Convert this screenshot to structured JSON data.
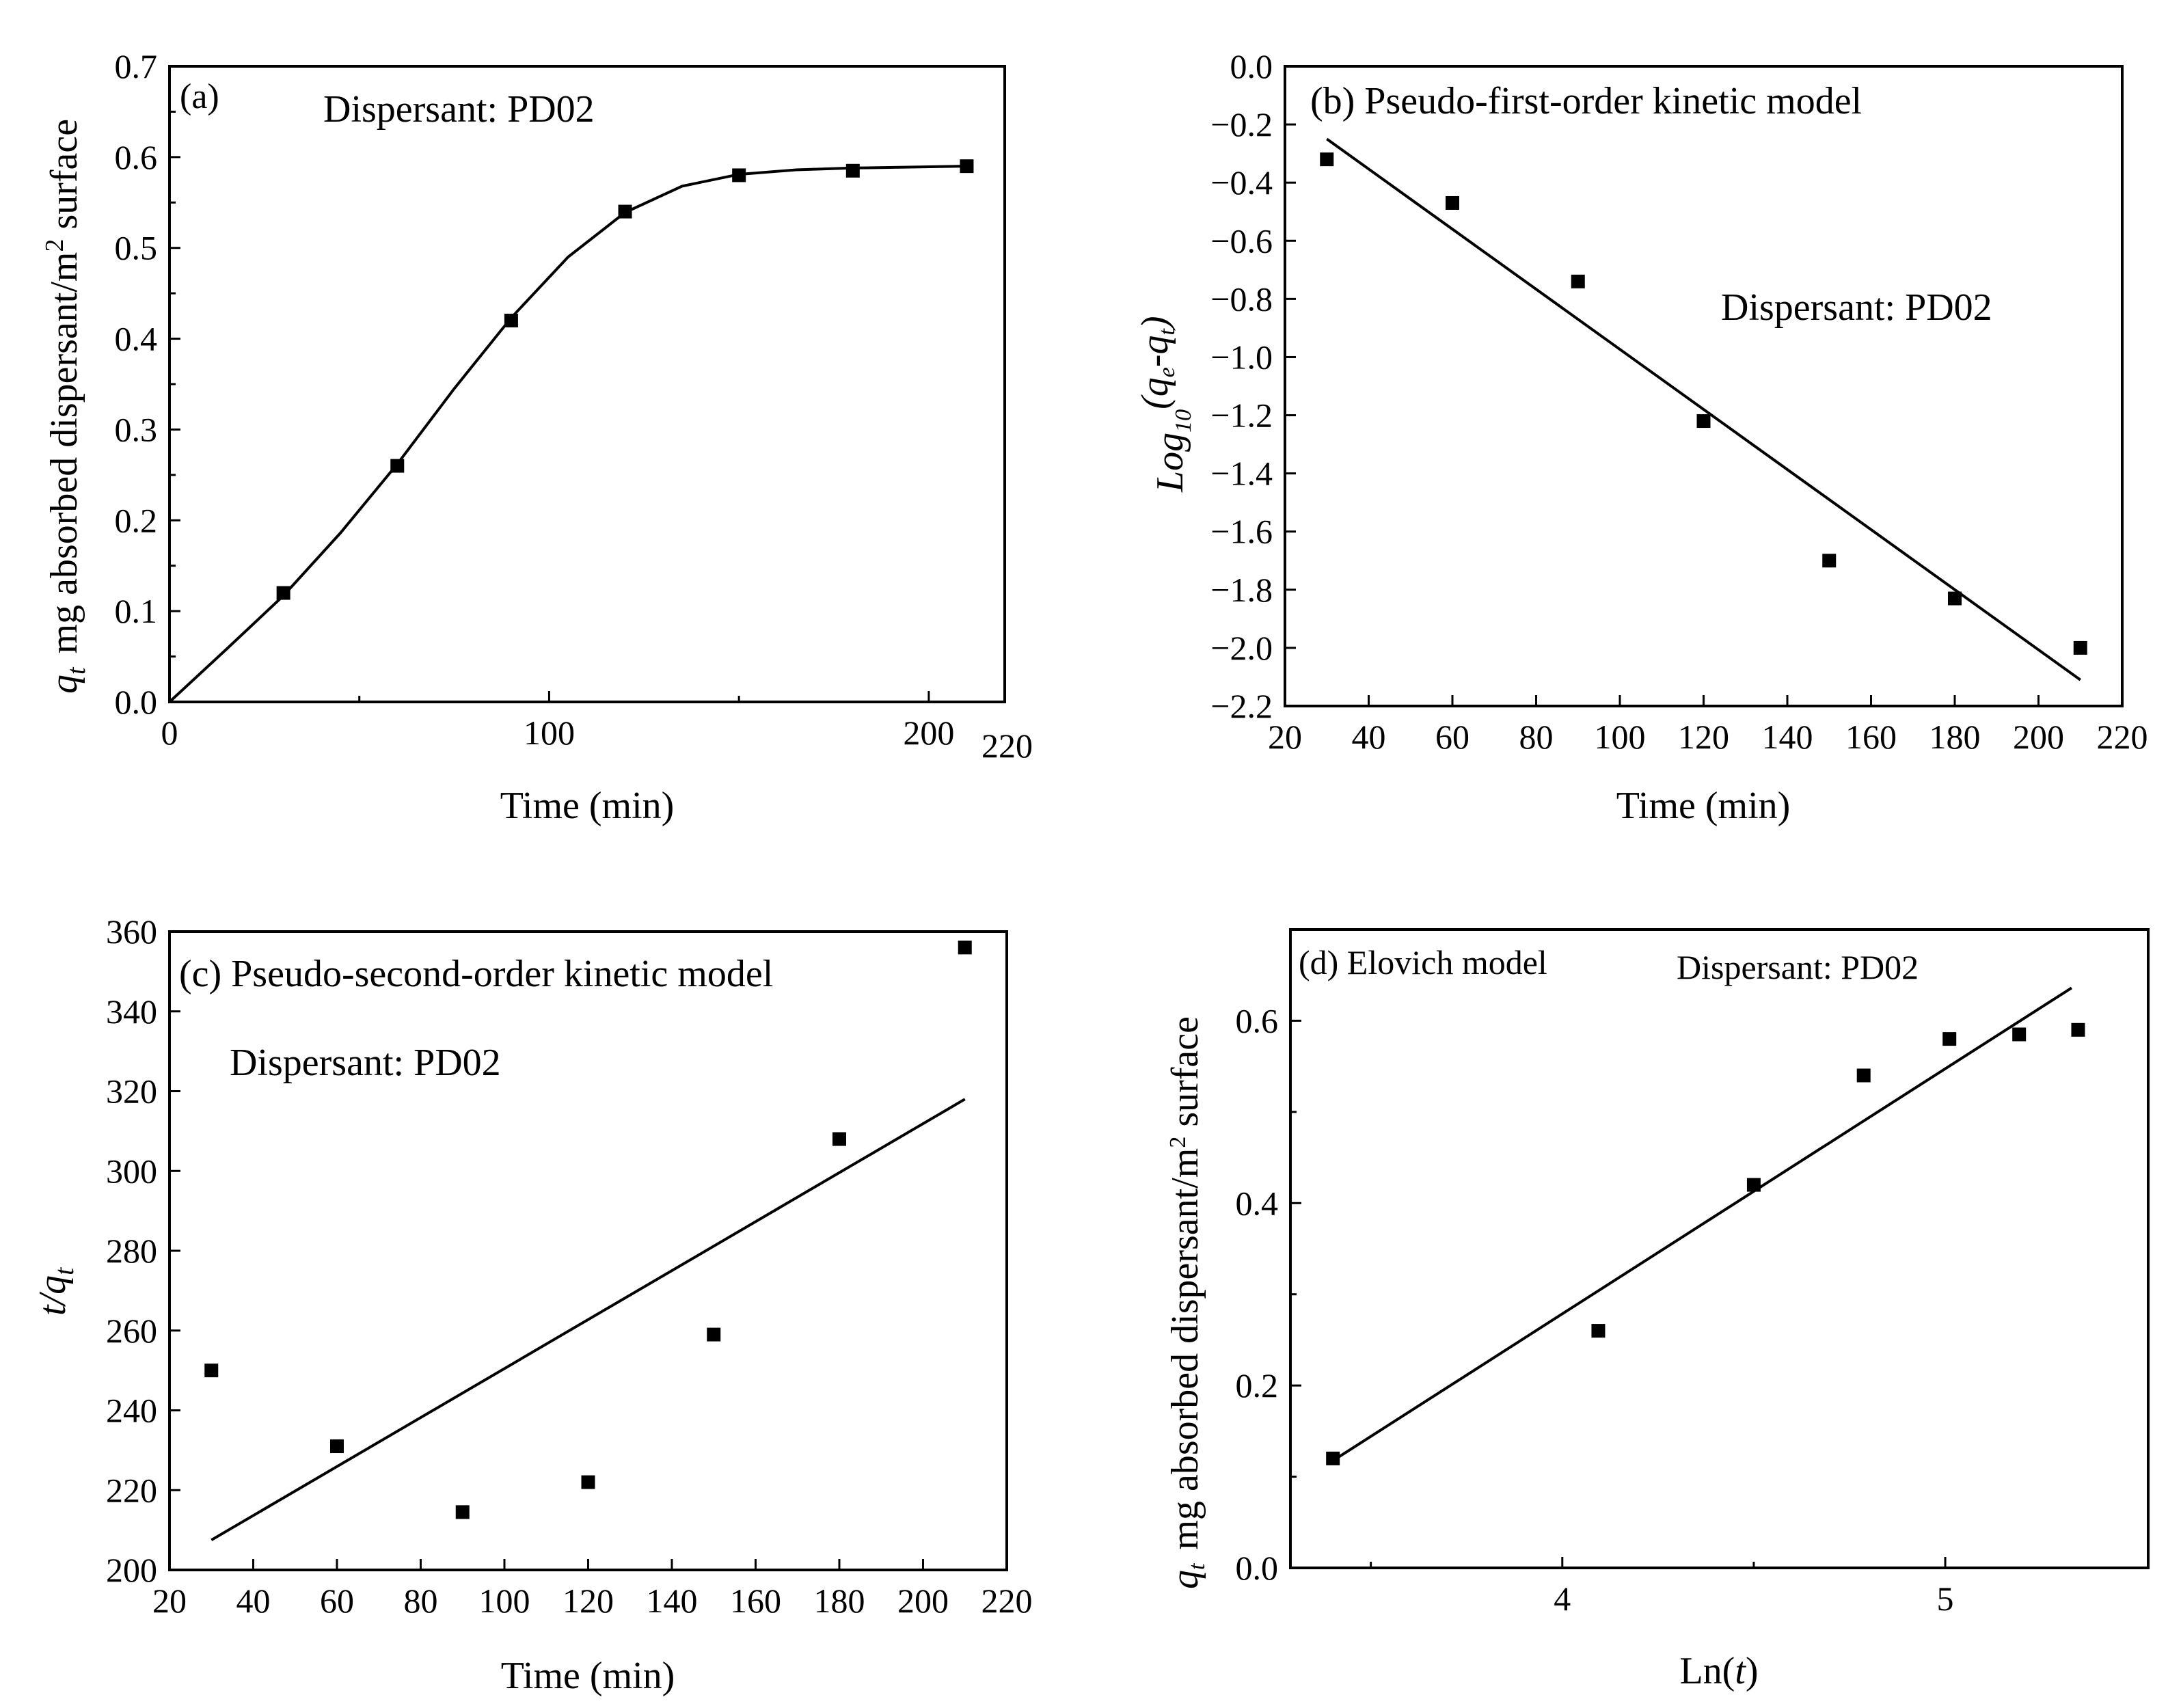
{
  "chart_data": [
    {
      "type": "scatter",
      "panel_label": "(a)",
      "annotation": "Dispersant: PD02",
      "title": "",
      "xlabel": "Time (min)",
      "ylabel_main": "mg absorbed dispersant/m",
      "ylabel_sup": "2",
      "ylabel_tail": " surface",
      "ylabel_symbol": "q",
      "ylabel_symbol_sub": "t",
      "xlim": [
        0,
        220
      ],
      "ylim": [
        0.0,
        0.7
      ],
      "xticks": [
        0,
        100,
        200
      ],
      "xtick_labels": [
        "0",
        "100",
        "200"
      ],
      "x_end_label": "220",
      "x_minor_ticks": [
        50,
        150
      ],
      "yticks": [
        0.0,
        0.1,
        0.2,
        0.3,
        0.4,
        0.5,
        0.6,
        0.7
      ],
      "ytick_labels": [
        "0.0",
        "0.1",
        "0.2",
        "0.3",
        "0.4",
        "0.5",
        "0.6",
        "0.7"
      ],
      "y_minor_ticks": [
        0.05,
        0.15,
        0.25,
        0.35,
        0.45,
        0.55,
        0.65
      ],
      "series": [
        {
          "name": "measured",
          "kind": "markers",
          "x": [
            30,
            60,
            90,
            120,
            150,
            180,
            210
          ],
          "y": [
            0.12,
            0.26,
            0.42,
            0.54,
            0.58,
            0.585,
            0.59
          ]
        },
        {
          "name": "fit",
          "kind": "curve",
          "x": [
            0,
            15,
            30,
            45,
            60,
            75,
            90,
            105,
            120,
            135,
            150,
            165,
            180,
            195,
            210
          ],
          "y": [
            0.0,
            0.058,
            0.117,
            0.186,
            0.262,
            0.345,
            0.423,
            0.49,
            0.539,
            0.568,
            0.581,
            0.586,
            0.588,
            0.589,
            0.59
          ]
        }
      ]
    },
    {
      "type": "scatter",
      "panel_label": "(b) Pseudo-first-order kinetic model",
      "annotation": "Dispersant: PD02",
      "title": "",
      "xlabel": "Time (min)",
      "ylabel_main": "Log",
      "ylabel_sub": "10",
      "ylabel_tail": "(q",
      "ylabel_tail_sub": "e",
      "ylabel_tail2": "-q",
      "ylabel_tail2_sub": "t",
      "ylabel_close": ")",
      "xlim": [
        20,
        220
      ],
      "ylim": [
        -2.2,
        0.0
      ],
      "xticks": [
        20,
        40,
        60,
        80,
        100,
        120,
        140,
        160,
        180,
        200,
        220
      ],
      "xtick_labels": [
        "20",
        "40",
        "60",
        "80",
        "100",
        "120",
        "140",
        "160",
        "180",
        "200",
        "220"
      ],
      "yticks": [
        0.0,
        -0.2,
        -0.4,
        -0.6,
        -0.8,
        -1.0,
        -1.2,
        -1.4,
        -1.6,
        -1.8,
        -2.0,
        -2.2
      ],
      "ytick_labels": [
        "0.0",
        "−0.2",
        "−0.4",
        "−0.6",
        "−0.8",
        "−1.0",
        "−1.2",
        "−1.4",
        "−1.6",
        "−1.8",
        "−2.0",
        "−2.2"
      ],
      "series": [
        {
          "name": "measured",
          "kind": "markers",
          "x": [
            30,
            60,
            90,
            120,
            150,
            180,
            210
          ],
          "y": [
            -0.32,
            -0.47,
            -0.74,
            -1.22,
            -1.7,
            -1.83,
            -2.0
          ]
        },
        {
          "name": "linear fit",
          "kind": "line",
          "x": [
            30,
            210
          ],
          "y": [
            -0.25,
            -2.11
          ]
        }
      ]
    },
    {
      "type": "scatter",
      "panel_label": "(c) Pseudo-second-order kinetic model",
      "annotation": "Dispersant: PD02",
      "title": "",
      "xlabel": "Time (min)",
      "ylabel_main": "t/q",
      "ylabel_sub": "t",
      "xlim": [
        20,
        220
      ],
      "ylim": [
        200,
        360
      ],
      "xticks": [
        20,
        40,
        60,
        80,
        100,
        120,
        140,
        160,
        180,
        200,
        220
      ],
      "xtick_labels": [
        "20",
        "40",
        "60",
        "80",
        "100",
        "120",
        "140",
        "160",
        "180",
        "200",
        "220"
      ],
      "yticks": [
        200,
        220,
        240,
        260,
        280,
        300,
        320,
        340,
        360
      ],
      "ytick_labels": [
        "200",
        "220",
        "240",
        "260",
        "280",
        "300",
        "320",
        "340",
        "360"
      ],
      "series": [
        {
          "name": "measured",
          "kind": "markers",
          "x": [
            30,
            60,
            90,
            120,
            150,
            180,
            210
          ],
          "y": [
            250,
            231,
            214.5,
            222,
            259,
            308,
            356
          ]
        },
        {
          "name": "linear fit",
          "kind": "line",
          "x": [
            30,
            210
          ],
          "y": [
            207.5,
            318
          ]
        }
      ]
    },
    {
      "type": "scatter",
      "panel_label": "(d) Elovich model",
      "annotation": "Dispersant: PD02",
      "title": "",
      "xlabel_main": "Ln(",
      "xlabel_var": "t",
      "xlabel_close": ")",
      "ylabel_main": "mg absorbed dispersant/m",
      "ylabel_sup": "2",
      "ylabel_tail": " surface",
      "ylabel_symbol": "q",
      "ylabel_symbol_sub": "t",
      "xlim": [
        3.29,
        5.53
      ],
      "ylim": [
        0.0,
        0.7
      ],
      "xticks": [
        4,
        5
      ],
      "xtick_labels": [
        "4",
        "5"
      ],
      "x_minor_ticks": [
        3.5,
        4.5
      ],
      "yticks": [
        0.0,
        0.2,
        0.4,
        0.6
      ],
      "ytick_labels": [
        "0.0",
        "0.2",
        "0.4",
        "0.6"
      ],
      "y_minor_ticks": [
        0.1,
        0.3,
        0.5
      ],
      "series": [
        {
          "name": "measured",
          "kind": "markers",
          "x": [
            3.401,
            4.094,
            4.5,
            4.787,
            5.011,
            5.193,
            5.347
          ],
          "y": [
            0.12,
            0.26,
            0.42,
            0.54,
            0.58,
            0.585,
            0.59
          ]
        },
        {
          "name": "linear fit",
          "kind": "line",
          "x": [
            3.41,
            5.33
          ],
          "y": [
            0.12,
            0.636
          ]
        }
      ]
    }
  ]
}
